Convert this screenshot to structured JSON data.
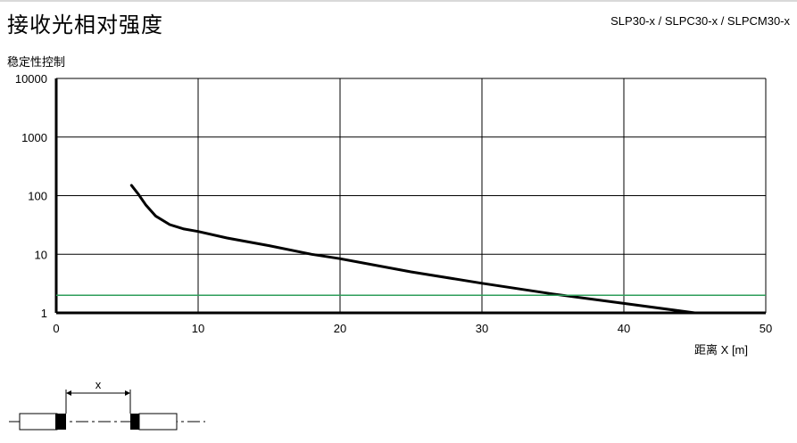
{
  "header": {
    "title": "接收光相对强度",
    "models": "SLP30-x / SLPC30-x / SLPCM30-x"
  },
  "colors": {
    "curve": "#000000",
    "threshold": "#2e9e5a",
    "grid": "#000000"
  },
  "chart_data": {
    "type": "line",
    "title": "接收光相对强度",
    "ylabel": "稳定性控制",
    "xlabel": "距离 X [m]",
    "xlim": [
      0,
      50
    ],
    "ylim": [
      1,
      10000
    ],
    "yscale": "log",
    "x_ticks": [
      0,
      10,
      20,
      30,
      40,
      50
    ],
    "y_ticks": [
      1,
      10,
      100,
      1000,
      10000
    ],
    "grid": true,
    "series": [
      {
        "type": "curve",
        "x": [
          5.3,
          5.8,
          6.3,
          7.0,
          8.0,
          9.0,
          10,
          12,
          15,
          18,
          20,
          25,
          30,
          35,
          40,
          45
        ],
        "y": [
          150,
          105,
          70,
          45,
          32,
          27,
          24.5,
          19,
          14,
          10,
          8.4,
          5,
          3.2,
          2.1,
          1.45,
          1.0
        ]
      },
      {
        "type": "threshold",
        "x": [
          0,
          50
        ],
        "y": [
          2,
          2
        ]
      }
    ]
  },
  "diagram": {
    "x_label": "x"
  }
}
